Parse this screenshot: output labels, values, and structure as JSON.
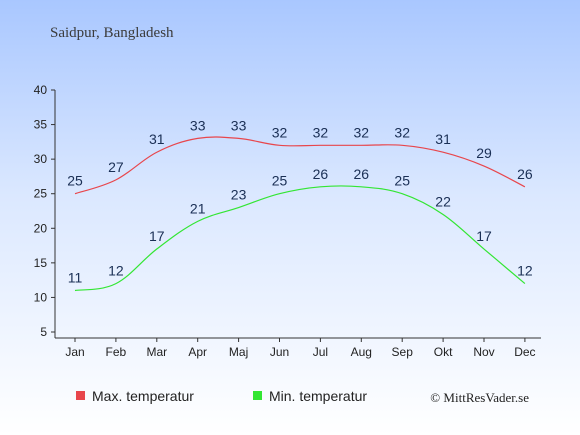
{
  "chart_data": {
    "type": "line",
    "title": "Saidpur, Bangladesh",
    "categories": [
      "Jan",
      "Feb",
      "Mar",
      "Apr",
      "Maj",
      "Jun",
      "Jul",
      "Aug",
      "Sep",
      "Okt",
      "Nov",
      "Dec"
    ],
    "yticks": [
      5,
      10,
      15,
      20,
      25,
      30,
      35,
      40
    ],
    "ylim": [
      5,
      40
    ],
    "series": [
      {
        "name": "Max. temperatur",
        "color": "#e8464c",
        "values": [
          25,
          27,
          31,
          33,
          33,
          32,
          32,
          32,
          32,
          31,
          29,
          26
        ]
      },
      {
        "name": "Min. temperatur",
        "color": "#33e633",
        "values": [
          11,
          12,
          17,
          21,
          23,
          25,
          26,
          26,
          25,
          22,
          17,
          12
        ]
      }
    ],
    "credit": "© MittResVader.se",
    "grid": false,
    "legend": "bottom"
  }
}
